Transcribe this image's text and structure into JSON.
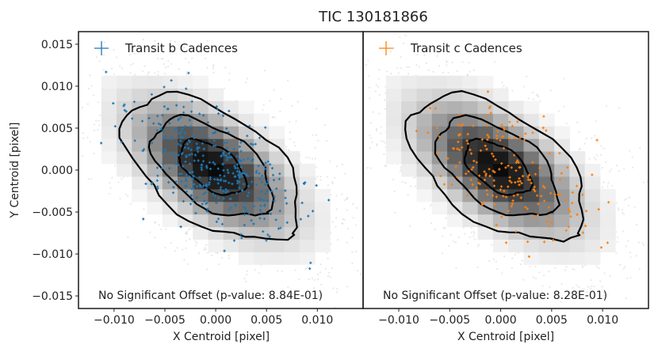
{
  "chart_data": {
    "type": "scatter",
    "title": "TIC 130181866",
    "xlabel": "X Centroid [pixel]",
    "ylabel": "Y Centroid [pixel]",
    "xlim": [
      -0.0135,
      0.0145
    ],
    "ylim": [
      -0.0165,
      0.0165
    ],
    "x_ticks": [
      -0.01,
      -0.005,
      0.0,
      0.005,
      0.01
    ],
    "x_tick_labels": [
      "−0.010",
      "−0.005",
      "0.000",
      "0.005",
      "0.010"
    ],
    "y_ticks": [
      0.015,
      0.01,
      0.005,
      0.0,
      -0.005,
      -0.01,
      -0.015
    ],
    "y_tick_labels": [
      "0.015",
      "0.010",
      "0.005",
      "0.000",
      "−0.005",
      "−0.010",
      "−0.015"
    ],
    "panels": [
      {
        "legend": "Transit b Cadences",
        "color": "#1f77b4",
        "annotation": "No Significant Offset (p-value: 8.84E-01)",
        "n_points": 380,
        "seed": 11
      },
      {
        "legend": "Transit c Cadences",
        "color": "#ff7f0e",
        "annotation": "No Significant Offset (p-value: 8.28E-01)",
        "n_points": 200,
        "seed": 29
      }
    ],
    "background_points": 2600,
    "contour_levels": 3,
    "grid": false
  }
}
